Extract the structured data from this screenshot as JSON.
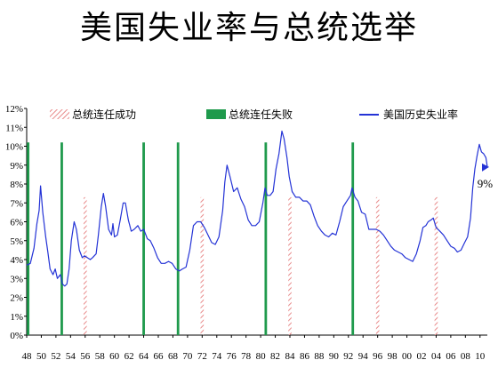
{
  "title": "美国失业率与总统选举",
  "chart_data": {
    "type": "line",
    "title": "美国失业率与总统选举",
    "ylim": [
      0,
      12
    ],
    "xlim": [
      1948,
      2011
    ],
    "y_ticks": [
      "0%",
      "1%",
      "2%",
      "3%",
      "4%",
      "5%",
      "6%",
      "7%",
      "8%",
      "9%",
      "10%",
      "11%",
      "12%"
    ],
    "x_ticks": [
      "48",
      "50",
      "52",
      "54",
      "56",
      "58",
      "60",
      "62",
      "64",
      "66",
      "68",
      "70",
      "72",
      "74",
      "76",
      "78",
      "80",
      "82",
      "84",
      "86",
      "88",
      "90",
      "92",
      "94",
      "96",
      "98",
      "00",
      "02",
      "04",
      "06",
      "08",
      "10"
    ],
    "legend": {
      "placement": "top",
      "items": [
        {
          "label": "总统连任成功",
          "style": "hatched",
          "color": "#e88a8a"
        },
        {
          "label": "总统连任失败",
          "style": "solid",
          "color": "#1f9a4c"
        },
        {
          "label": "美国历史失业率",
          "style": "line",
          "color": "#2433d6"
        }
      ]
    },
    "reelection_success_years": [
      1956,
      1972,
      1984,
      1996,
      2004
    ],
    "reelection_failure_years": [
      1948.2,
      1952.8,
      1964,
      1968.7,
      1980.7,
      1992.6
    ],
    "series": [
      {
        "name": "美国历史失业率",
        "color": "#2433d6",
        "points": [
          [
            1948.0,
            3.7
          ],
          [
            1948.5,
            3.8
          ],
          [
            1949.0,
            4.6
          ],
          [
            1949.4,
            5.9
          ],
          [
            1949.7,
            6.6
          ],
          [
            1949.9,
            7.9
          ],
          [
            1950.2,
            6.5
          ],
          [
            1950.6,
            5.2
          ],
          [
            1950.9,
            4.4
          ],
          [
            1951.2,
            3.5
          ],
          [
            1951.6,
            3.2
          ],
          [
            1951.9,
            3.5
          ],
          [
            1952.2,
            3.0
          ],
          [
            1952.6,
            3.2
          ],
          [
            1952.9,
            2.7
          ],
          [
            1953.2,
            2.6
          ],
          [
            1953.5,
            2.7
          ],
          [
            1953.8,
            3.5
          ],
          [
            1954.1,
            5.0
          ],
          [
            1954.5,
            6.0
          ],
          [
            1954.8,
            5.6
          ],
          [
            1955.2,
            4.5
          ],
          [
            1955.6,
            4.1
          ],
          [
            1955.9,
            4.2
          ],
          [
            1956.3,
            4.1
          ],
          [
            1956.7,
            4.0
          ],
          [
            1957.0,
            4.1
          ],
          [
            1957.5,
            4.3
          ],
          [
            1957.8,
            5.3
          ],
          [
            1958.2,
            6.8
          ],
          [
            1958.5,
            7.5
          ],
          [
            1958.8,
            6.8
          ],
          [
            1959.2,
            5.6
          ],
          [
            1959.6,
            5.3
          ],
          [
            1959.8,
            5.9
          ],
          [
            1960.0,
            5.2
          ],
          [
            1960.4,
            5.3
          ],
          [
            1960.8,
            6.1
          ],
          [
            1961.2,
            7.0
          ],
          [
            1961.5,
            7.0
          ],
          [
            1961.9,
            6.1
          ],
          [
            1962.3,
            5.5
          ],
          [
            1962.7,
            5.6
          ],
          [
            1963.2,
            5.8
          ],
          [
            1963.6,
            5.5
          ],
          [
            1964.0,
            5.6
          ],
          [
            1964.5,
            5.1
          ],
          [
            1964.9,
            5.0
          ],
          [
            1965.4,
            4.6
          ],
          [
            1965.9,
            4.1
          ],
          [
            1966.4,
            3.8
          ],
          [
            1966.9,
            3.8
          ],
          [
            1967.4,
            3.9
          ],
          [
            1967.9,
            3.8
          ],
          [
            1968.4,
            3.5
          ],
          [
            1968.9,
            3.4
          ],
          [
            1969.3,
            3.5
          ],
          [
            1969.8,
            3.6
          ],
          [
            1970.3,
            4.5
          ],
          [
            1970.8,
            5.8
          ],
          [
            1971.3,
            6.0
          ],
          [
            1971.8,
            6.0
          ],
          [
            1972.3,
            5.7
          ],
          [
            1972.8,
            5.3
          ],
          [
            1973.3,
            4.9
          ],
          [
            1973.8,
            4.8
          ],
          [
            1974.3,
            5.2
          ],
          [
            1974.8,
            6.6
          ],
          [
            1975.1,
            8.1
          ],
          [
            1975.4,
            9.0
          ],
          [
            1975.8,
            8.4
          ],
          [
            1976.3,
            7.6
          ],
          [
            1976.8,
            7.8
          ],
          [
            1977.3,
            7.2
          ],
          [
            1977.8,
            6.8
          ],
          [
            1978.3,
            6.1
          ],
          [
            1978.8,
            5.8
          ],
          [
            1979.3,
            5.8
          ],
          [
            1979.8,
            6.0
          ],
          [
            1980.3,
            7.0
          ],
          [
            1980.6,
            7.8
          ],
          [
            1980.9,
            7.4
          ],
          [
            1981.3,
            7.4
          ],
          [
            1981.7,
            7.6
          ],
          [
            1982.1,
            8.8
          ],
          [
            1982.5,
            9.6
          ],
          [
            1982.9,
            10.8
          ],
          [
            1983.2,
            10.4
          ],
          [
            1983.6,
            9.4
          ],
          [
            1983.9,
            8.4
          ],
          [
            1984.3,
            7.6
          ],
          [
            1984.8,
            7.3
          ],
          [
            1985.3,
            7.3
          ],
          [
            1985.8,
            7.1
          ],
          [
            1986.3,
            7.1
          ],
          [
            1986.8,
            6.9
          ],
          [
            1987.3,
            6.3
          ],
          [
            1987.8,
            5.8
          ],
          [
            1988.3,
            5.5
          ],
          [
            1988.8,
            5.3
          ],
          [
            1989.3,
            5.2
          ],
          [
            1989.8,
            5.4
          ],
          [
            1990.3,
            5.3
          ],
          [
            1990.8,
            6.0
          ],
          [
            1991.3,
            6.8
          ],
          [
            1991.8,
            7.1
          ],
          [
            1992.3,
            7.4
          ],
          [
            1992.5,
            7.8
          ],
          [
            1992.9,
            7.3
          ],
          [
            1993.3,
            7.1
          ],
          [
            1993.8,
            6.5
          ],
          [
            1994.3,
            6.4
          ],
          [
            1994.8,
            5.6
          ],
          [
            1995.3,
            5.6
          ],
          [
            1995.8,
            5.6
          ],
          [
            1996.3,
            5.5
          ],
          [
            1996.8,
            5.3
          ],
          [
            1997.3,
            5.0
          ],
          [
            1997.8,
            4.7
          ],
          [
            1998.3,
            4.5
          ],
          [
            1998.8,
            4.4
          ],
          [
            1999.3,
            4.3
          ],
          [
            1999.8,
            4.1
          ],
          [
            2000.3,
            4.0
          ],
          [
            2000.8,
            3.9
          ],
          [
            2001.3,
            4.3
          ],
          [
            2001.8,
            5.0
          ],
          [
            2002.2,
            5.7
          ],
          [
            2002.6,
            5.8
          ],
          [
            2002.9,
            6.0
          ],
          [
            2003.3,
            6.1
          ],
          [
            2003.6,
            6.2
          ],
          [
            2004.0,
            5.7
          ],
          [
            2004.5,
            5.5
          ],
          [
            2005.0,
            5.3
          ],
          [
            2005.5,
            5.0
          ],
          [
            2006.0,
            4.7
          ],
          [
            2006.5,
            4.6
          ],
          [
            2006.9,
            4.4
          ],
          [
            2007.4,
            4.5
          ],
          [
            2007.9,
            4.9
          ],
          [
            2008.3,
            5.2
          ],
          [
            2008.7,
            6.2
          ],
          [
            2009.0,
            7.8
          ],
          [
            2009.3,
            8.8
          ],
          [
            2009.6,
            9.5
          ],
          [
            2009.9,
            10.1
          ],
          [
            2010.2,
            9.7
          ],
          [
            2010.5,
            9.6
          ],
          [
            2010.8,
            9.4
          ],
          [
            2011.0,
            8.9
          ]
        ]
      }
    ],
    "annotations": [
      {
        "text": "9%",
        "x": 2010.6,
        "y": 8.9
      }
    ]
  }
}
